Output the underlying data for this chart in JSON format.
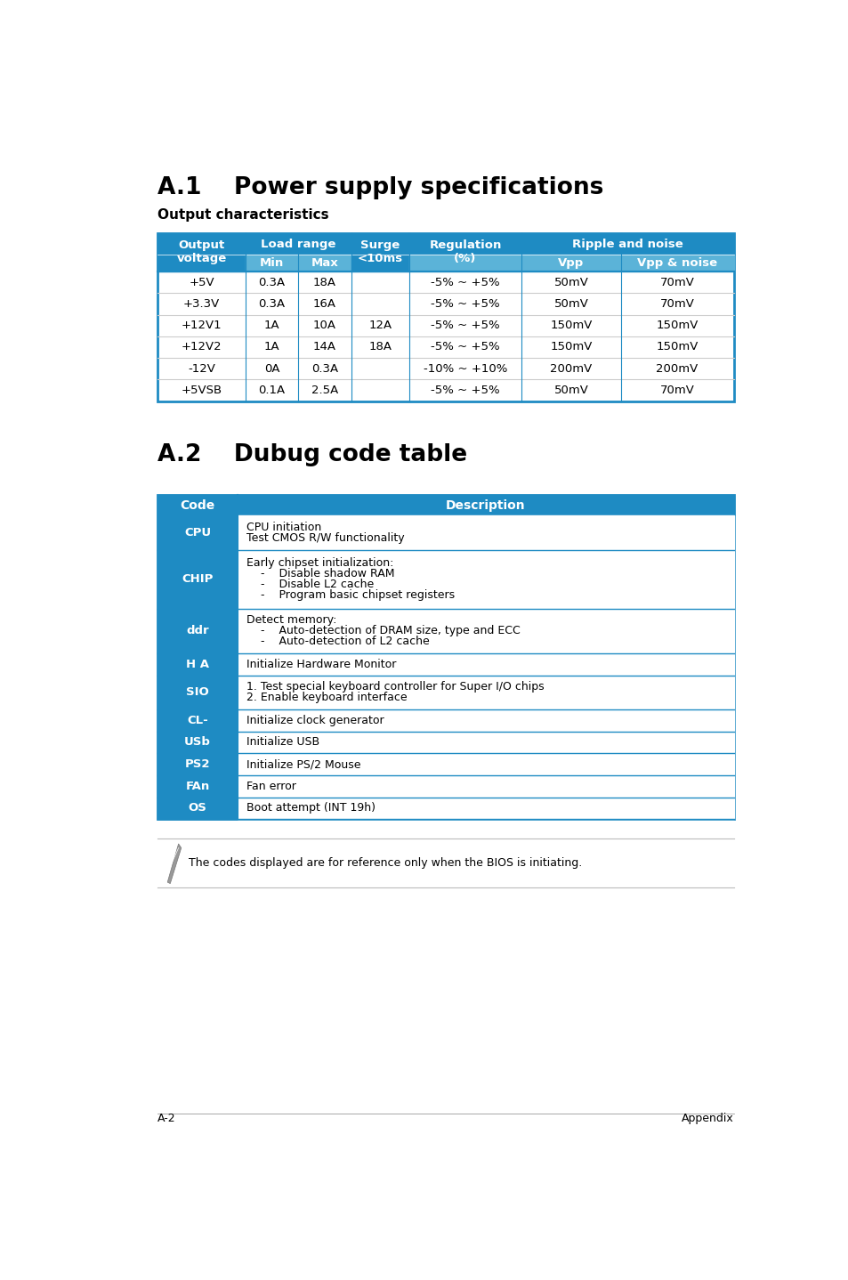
{
  "title1": "A.1    Power supply specifications",
  "subtitle1": "Output characteristics",
  "title2": "A.2    Dubug code table",
  "header_color": "#1e8bc3",
  "subheader_color": "#5bb3d8",
  "border_color": "#1e8bc3",
  "row_line_color": "#cccccc",
  "bg_color": "#ffffff",
  "text_color_dark": "#000000",
  "text_color_white": "#ffffff",
  "table1_rows": [
    [
      "+5V",
      "0.3A",
      "18A",
      "",
      "-5% ~ +5%",
      "50mV",
      "70mV"
    ],
    [
      "+3.3V",
      "0.3A",
      "16A",
      "",
      "-5% ~ +5%",
      "50mV",
      "70mV"
    ],
    [
      "+12V1",
      "1A",
      "10A",
      "12A",
      "-5% ~ +5%",
      "150mV",
      "150mV"
    ],
    [
      "+12V2",
      "1A",
      "14A",
      "18A",
      "-5% ~ +5%",
      "150mV",
      "150mV"
    ],
    [
      "-12V",
      "0A",
      "0.3A",
      "",
      "-10% ~ +10%",
      "200mV",
      "200mV"
    ],
    [
      "+5VSB",
      "0.1A",
      "2.5A",
      "",
      "-5% ~ +5%",
      "50mV",
      "70mV"
    ]
  ],
  "table2_rows": [
    [
      "CPU",
      "CPU initiation\nTest CMOS R/W functionality"
    ],
    [
      "CHIP",
      "Early chipset initialization:\n    -    Disable shadow RAM\n    -    Disable L2 cache\n    -    Program basic chipset registers"
    ],
    [
      "ddr",
      "Detect memory:\n    -    Auto-detection of DRAM size, type and ECC\n    -    Auto-detection of L2 cache"
    ],
    [
      "H A",
      "Initialize Hardware Monitor"
    ],
    [
      "SIO",
      "1. Test special keyboard controller for Super I/O chips\n2. Enable keyboard interface"
    ],
    [
      "CL-",
      "Initialize clock generator"
    ],
    [
      "USb",
      "Initialize USB"
    ],
    [
      "PS2",
      "Initialize PS/2 Mouse"
    ],
    [
      "FAn",
      "Fan error"
    ],
    [
      "OS",
      "Boot attempt (INT 19h)"
    ]
  ],
  "note_text": "The codes displayed are for reference only when the BIOS is initiating.",
  "footer_left": "A-2",
  "footer_right": "Appendix"
}
